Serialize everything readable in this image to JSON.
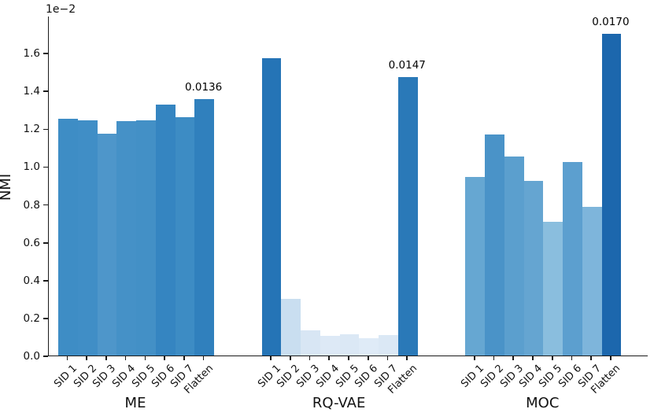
{
  "chart_data": {
    "type": "bar",
    "title": "",
    "xlabel": "",
    "ylabel": "NMI",
    "offset_text": "1e−2",
    "unit_scale": 0.01,
    "grid": false,
    "legend": null,
    "y_axis": {
      "min": 0,
      "max": 1.796,
      "ticks": [
        0.0,
        0.2,
        0.4,
        0.6,
        0.8,
        1.0,
        1.2,
        1.4,
        1.6
      ],
      "tick_labels": [
        "0.0",
        "0.2",
        "0.4",
        "0.6",
        "0.8",
        "1.0",
        "1.2",
        "1.4",
        "1.6"
      ]
    },
    "categories": [
      "SID 1",
      "SID 2",
      "SID 3",
      "SID 4",
      "SID 5",
      "SID 6",
      "SID 7",
      "Flatten"
    ],
    "groups": [
      {
        "label": "ME",
        "values": [
          1.25,
          1.245,
          1.172,
          1.239,
          1.242,
          1.325,
          1.259,
          1.356
        ],
        "colors": [
          "#3e8dc5",
          "#408ec6",
          "#4e96ca",
          "#4591c7",
          "#4390c6",
          "#3585c1",
          "#3d8cc4",
          "#3080bd"
        ],
        "annotation": {
          "bar_index": 7,
          "text": "0.0136"
        }
      },
      {
        "label": "RQ-VAE",
        "values": [
          1.57,
          0.3,
          0.132,
          0.103,
          0.111,
          0.09,
          0.109,
          1.47
        ],
        "colors": [
          "#2574b6",
          "#c9def0",
          "#d8e6f4",
          "#dde9f6",
          "#dbe8f5",
          "#dfebf7",
          "#dbe8f5",
          "#2a79b8"
        ],
        "annotation": {
          "bar_index": 7,
          "text": "0.0147"
        }
      },
      {
        "label": "MOC",
        "values": [
          0.943,
          1.167,
          1.05,
          0.923,
          0.707,
          1.022,
          0.787,
          1.7
        ],
        "colors": [
          "#66a7d2",
          "#4a93c8",
          "#5b9fce",
          "#65a5d1",
          "#8abede",
          "#5c9fcf",
          "#7eb5db",
          "#1c67ad"
        ],
        "annotation": {
          "bar_index": 7,
          "text": "0.0170"
        }
      }
    ]
  }
}
